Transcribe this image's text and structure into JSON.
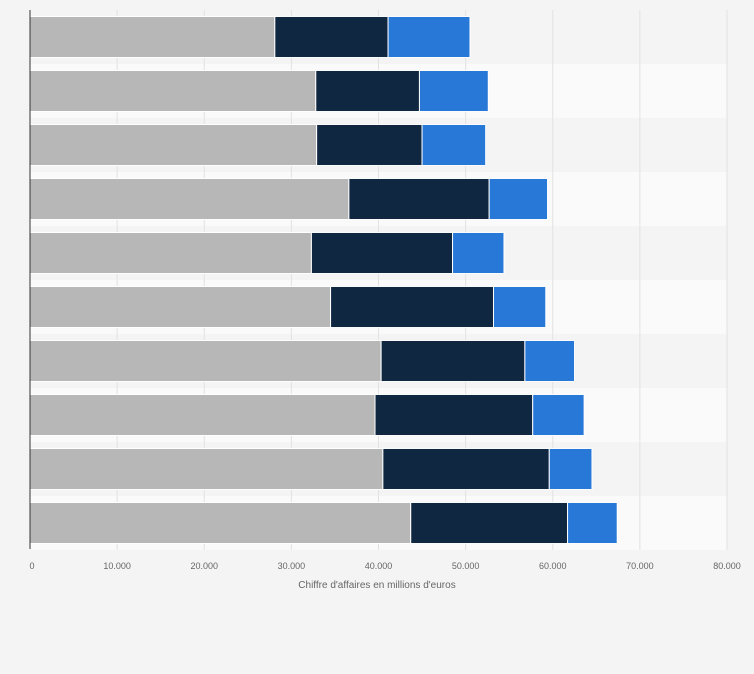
{
  "chart_data": {
    "type": "bar",
    "orientation": "horizontal",
    "stacked": true,
    "xlabel": "Chiffre d'affaires en millions d'euros",
    "xlim": [
      0,
      80000
    ],
    "ticks": [
      0,
      10000,
      20000,
      30000,
      40000,
      50000,
      60000,
      70000,
      80000
    ],
    "tick_labels": [
      "0",
      "10.000",
      "20.000",
      "30.000",
      "40.000",
      "50.000",
      "60.000",
      "70.000",
      "80.000"
    ],
    "grid": true,
    "series": [
      {
        "color": "#b7b7b7",
        "values": [
          28100,
          32800,
          32900,
          36600,
          32300,
          34500,
          40300,
          39600,
          40500,
          43700
        ]
      },
      {
        "color": "#0f2741",
        "values": [
          13000,
          11900,
          12100,
          16100,
          16200,
          18700,
          16500,
          18100,
          19100,
          18000
        ]
      },
      {
        "color": "#2878d8",
        "values": [
          9400,
          7900,
          7300,
          6700,
          5900,
          6000,
          5700,
          5900,
          4900,
          5700
        ]
      }
    ]
  }
}
